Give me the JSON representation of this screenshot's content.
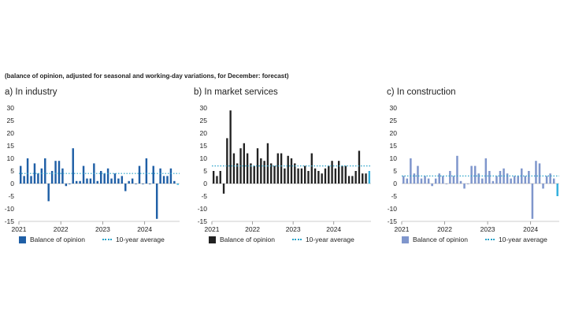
{
  "subtitle": "(balance of opinion, adjusted for seasonal and working-day variations, for December: forecast)",
  "legend": {
    "series_label": "Balance of opinion",
    "avg_label": "10-year average"
  },
  "colors": {
    "industry": "#1f5fa6",
    "services": "#222222",
    "construction": "#7f96cc",
    "forecast": "#34b0dd",
    "average": "#2aa3c9",
    "axis": "#bbbbbb"
  },
  "chart_data": [
    {
      "type": "bar",
      "title": "a)  In industry",
      "ylim": [
        -15,
        30
      ],
      "yticks": [
        -15,
        -10,
        -5,
        0,
        5,
        10,
        15,
        20,
        25,
        30
      ],
      "xticks": [
        {
          "label": "2021",
          "index": 0
        },
        {
          "label": "2022",
          "index": 12
        },
        {
          "label": "2023",
          "index": 24
        },
        {
          "label": "2024",
          "index": 36
        }
      ],
      "average": 4,
      "values": [
        7,
        3,
        10,
        3,
        8,
        4,
        6,
        10,
        -7,
        5,
        9,
        9,
        6,
        -1,
        0,
        14,
        1,
        1,
        7,
        2,
        2,
        8,
        1,
        5,
        4,
        6,
        2,
        4,
        2,
        3,
        -3,
        1,
        2,
        0,
        7,
        0,
        10,
        0,
        7,
        -14,
        6,
        3,
        3,
        6,
        1,
        -0.5
      ],
      "forecast_last": true
    },
    {
      "type": "bar",
      "title": "b)  In market services",
      "ylim": [
        -15,
        30
      ],
      "yticks": [
        -15,
        -10,
        -5,
        0,
        5,
        10,
        15,
        20,
        25,
        30
      ],
      "xticks": [
        {
          "label": "2021",
          "index": 0
        },
        {
          "label": "2022",
          "index": 12
        },
        {
          "label": "2023",
          "index": 24
        },
        {
          "label": "2024",
          "index": 36
        }
      ],
      "average": 7,
      "values": [
        5,
        3,
        5,
        -4,
        18,
        29,
        12,
        8,
        14,
        16,
        12,
        8,
        7,
        14,
        10,
        9,
        16,
        8,
        7,
        12,
        12,
        6,
        11,
        10,
        8,
        6,
        6,
        7,
        5,
        12,
        6,
        5,
        4,
        6,
        7,
        9,
        6,
        9,
        7,
        7,
        3,
        3,
        5,
        13,
        4,
        4,
        5
      ],
      "forecast_last": true
    },
    {
      "type": "bar",
      "title": "c)  In construction",
      "ylim": [
        -15,
        30
      ],
      "yticks": [
        -15,
        -10,
        -5,
        0,
        5,
        10,
        15,
        20,
        25,
        30
      ],
      "xticks": [
        {
          "label": "2021",
          "index": 0
        },
        {
          "label": "2022",
          "index": 12
        },
        {
          "label": "2023",
          "index": 24
        },
        {
          "label": "2024",
          "index": 36
        }
      ],
      "average": 3,
      "values": [
        3,
        2,
        10,
        4,
        7,
        2,
        3,
        2,
        -1,
        2,
        4,
        3,
        0,
        5,
        3,
        11,
        1,
        -2,
        0,
        7,
        7,
        4,
        2,
        10,
        5,
        1,
        3,
        5,
        6,
        4,
        2,
        3,
        3,
        6,
        3,
        5,
        -14,
        9,
        8,
        -2,
        3,
        4,
        2,
        -5
      ],
      "forecast_last": true
    }
  ]
}
